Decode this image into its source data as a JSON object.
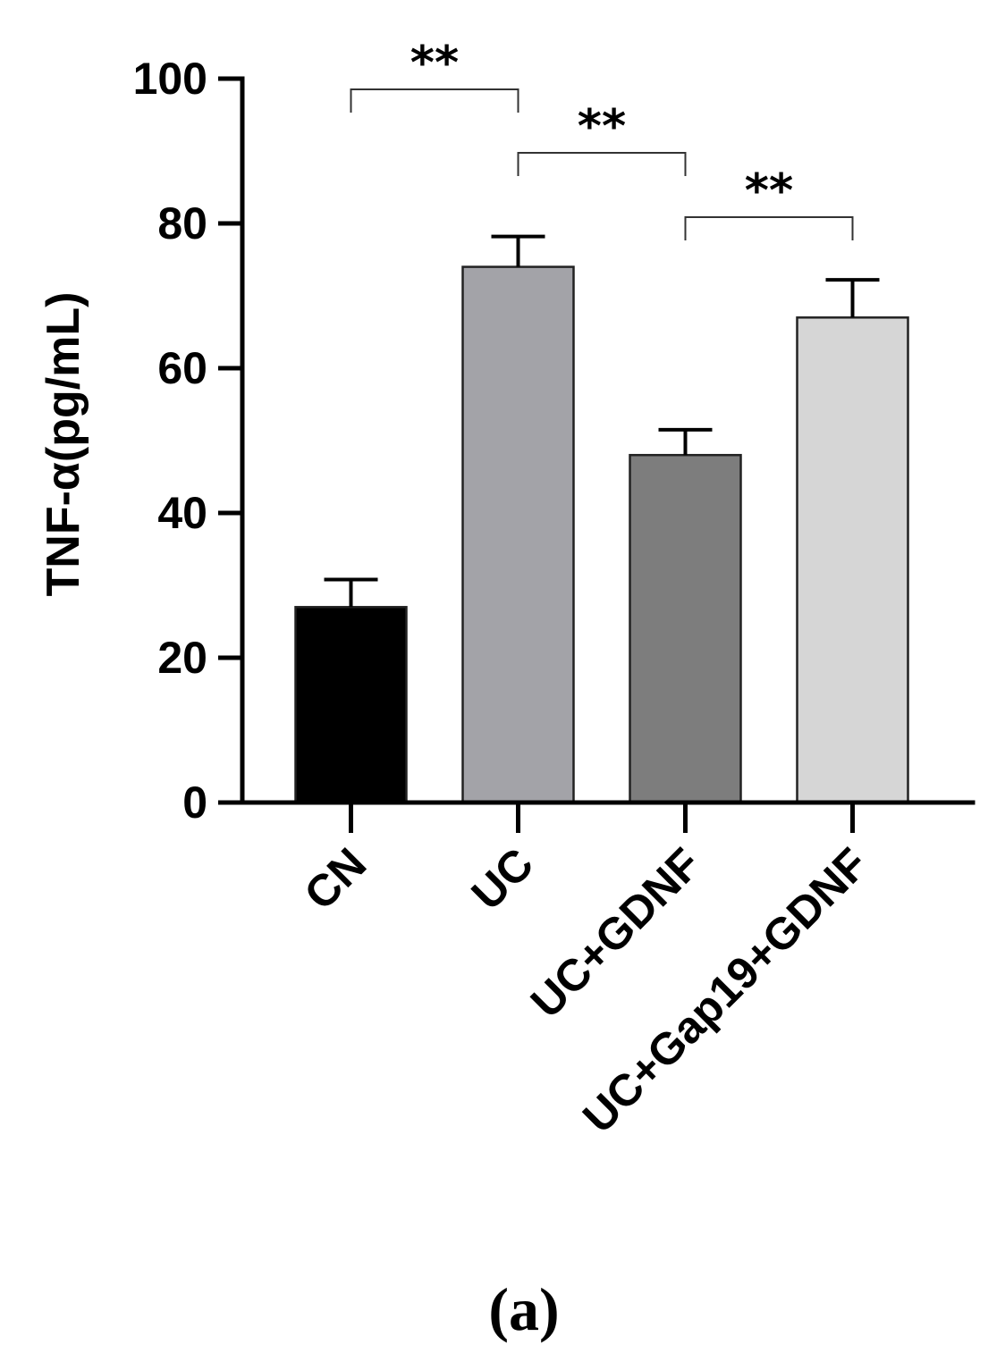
{
  "chart_data": {
    "type": "bar",
    "ylabel": "TNF-α(pg/mL)",
    "xlabel": "",
    "ylim": [
      0,
      100
    ],
    "yticks": [
      0,
      20,
      40,
      60,
      80,
      100
    ],
    "categories": [
      "CN",
      "UC",
      "UC+GDNF",
      "UC+Gap19+GDNF"
    ],
    "values": [
      27,
      74,
      48,
      67
    ],
    "errors": [
      3.8,
      4.2,
      3.5,
      5.2
    ],
    "bar_colors": [
      "#000000",
      "#a3a3a8",
      "#7d7d7d",
      "#d6d6d6"
    ],
    "grid": false,
    "annotations": [
      {
        "from": 0,
        "to": 1,
        "label": "**"
      },
      {
        "from": 1,
        "to": 2,
        "label": "**"
      },
      {
        "from": 2,
        "to": 3,
        "label": "**"
      }
    ]
  },
  "panel_label": "(a)"
}
